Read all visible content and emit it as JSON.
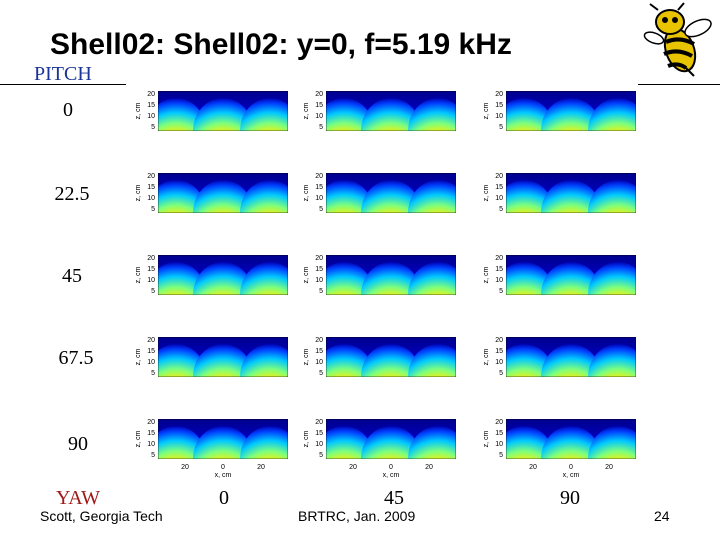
{
  "title": "Shell02: Shell02: y=0, f=5.19 kHz",
  "pitch": {
    "label": "PITCH",
    "values": [
      "0",
      "22.5",
      "45",
      "67.5",
      "90"
    ]
  },
  "yaw": {
    "label": "YAW",
    "values": [
      "0",
      "45",
      "90"
    ]
  },
  "axes": {
    "ylabel": "z, cm",
    "yticks": [
      "20",
      "15",
      "10",
      "5"
    ],
    "xlabel": "x, cm",
    "xticks": [
      "20",
      "0",
      "20"
    ]
  },
  "footer": {
    "author": "Scott, Georgia Tech",
    "event": "BRTRC, Jan. 2009",
    "page": "24"
  },
  "logo": {
    "icon": "yellow-jacket-mascot-icon"
  },
  "colors": {
    "title": "#000000",
    "pitch": "#1a3399",
    "yaw": "#a01818"
  }
}
